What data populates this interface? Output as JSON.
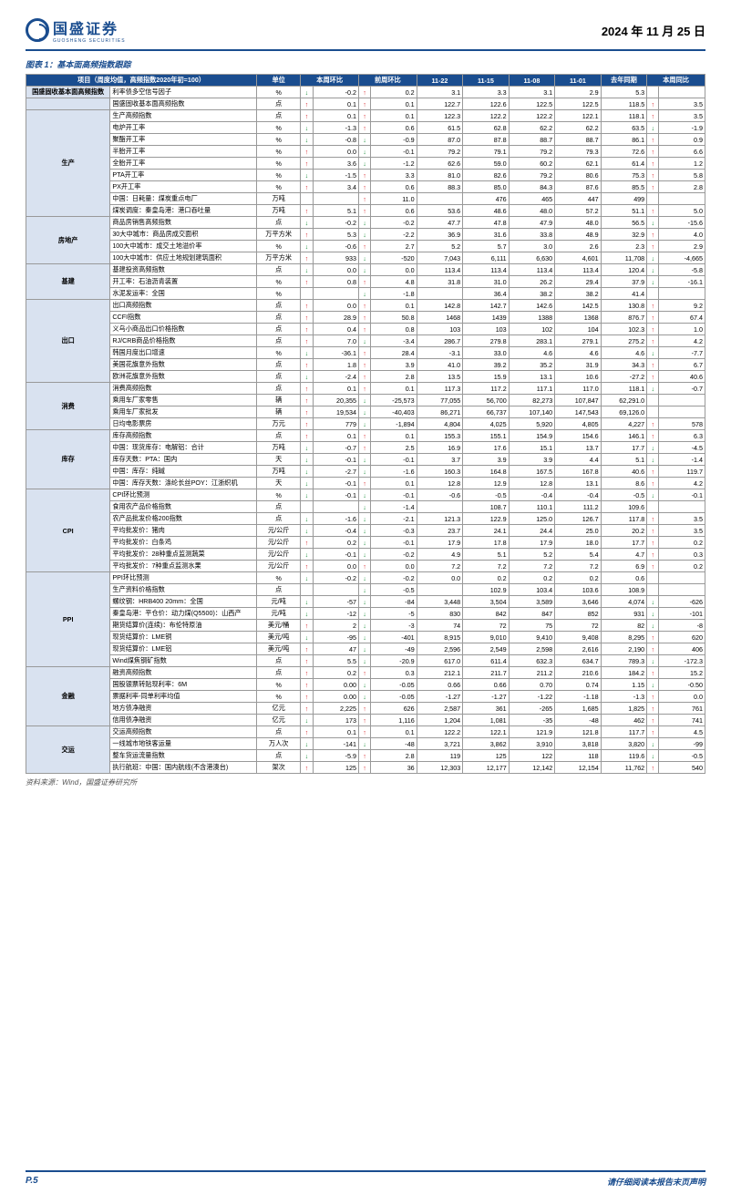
{
  "header": {
    "brand": "国盛证券",
    "brand_sub": "GUOSHENG SECURITIES",
    "date": "2024 年 11 月 25 日"
  },
  "figure_title": "图表 1：基本面高频指数跟踪",
  "source": "资料来源：Wind，国盛证券研究所",
  "footer": {
    "page": "P.5",
    "disclaimer": "请仔细阅读本报告末页声明"
  },
  "columns": [
    "项目（周度均值，高频指数2020年初=100）",
    "单位",
    "本周环比",
    "前周环比",
    "11-22",
    "11-15",
    "11-08",
    "11-01",
    "去年同期",
    "本周同比"
  ],
  "rows": [
    {
      "cat": "国盛固收基本面高频指数",
      "catspan": 1,
      "item": "利率债多空信号因子",
      "unit": "%",
      "wa": "dn",
      "wv": "-0.2",
      "pa": "up",
      "pv": "0.2",
      "v": [
        "3.1",
        "3.3",
        "3.1",
        "2.9",
        "5.3"
      ],
      "ya": "",
      "yv": ""
    },
    {
      "cat": "",
      "item": "国盛固收基本面高频指数",
      "unit": "点",
      "wa": "up",
      "wv": "0.1",
      "pa": "up",
      "pv": "0.1",
      "v": [
        "122.7",
        "122.6",
        "122.5",
        "122.5",
        "118.5"
      ],
      "ya": "up",
      "yv": "3.5"
    },
    {
      "cat": "生产",
      "catspan": 9,
      "item": "生产高频指数",
      "unit": "点",
      "wa": "up",
      "wv": "0.1",
      "pa": "up",
      "pv": "0.1",
      "v": [
        "122.3",
        "122.2",
        "122.2",
        "122.1",
        "118.1"
      ],
      "ya": "up",
      "yv": "3.5"
    },
    {
      "item": "电炉开工率",
      "unit": "%",
      "wa": "dn",
      "wv": "-1.3",
      "pa": "up",
      "pv": "0.6",
      "v": [
        "61.5",
        "62.8",
        "62.2",
        "62.2",
        "63.5"
      ],
      "ya": "dn",
      "yv": "-1.9"
    },
    {
      "item": "聚酯开工率",
      "unit": "%",
      "wa": "dn",
      "wv": "-0.8",
      "pa": "dn",
      "pv": "-0.9",
      "v": [
        "87.0",
        "87.8",
        "88.7",
        "88.7",
        "86.1"
      ],
      "ya": "up",
      "yv": "0.9"
    },
    {
      "item": "半胎开工率",
      "unit": "%",
      "wa": "up",
      "wv": "0.0",
      "pa": "dn",
      "pv": "-0.1",
      "v": [
        "79.2",
        "79.1",
        "79.2",
        "79.3",
        "72.6"
      ],
      "ya": "up",
      "yv": "6.6"
    },
    {
      "item": "全胎开工率",
      "unit": "%",
      "wa": "up",
      "wv": "3.6",
      "pa": "dn",
      "pv": "-1.2",
      "v": [
        "62.6",
        "59.0",
        "60.2",
        "62.1",
        "61.4"
      ],
      "ya": "up",
      "yv": "1.2"
    },
    {
      "item": "PTA开工率",
      "unit": "%",
      "wa": "dn",
      "wv": "-1.5",
      "pa": "up",
      "pv": "3.3",
      "v": [
        "81.0",
        "82.6",
        "79.2",
        "80.6",
        "75.3"
      ],
      "ya": "up",
      "yv": "5.8"
    },
    {
      "item": "PX开工率",
      "unit": "%",
      "wa": "up",
      "wv": "3.4",
      "pa": "up",
      "pv": "0.6",
      "v": [
        "88.3",
        "85.0",
        "84.3",
        "87.6",
        "85.5"
      ],
      "ya": "up",
      "yv": "2.8"
    },
    {
      "item": "中国：日耗量：煤炭重点电厂",
      "unit": "万吨",
      "wa": "",
      "wv": "",
      "pa": "up",
      "pv": "11.0",
      "v": [
        "",
        "476",
        "465",
        "447",
        "499"
      ],
      "ya": "",
      "yv": ""
    },
    {
      "item": "煤炭调度：秦皇岛港：港口吞吐量",
      "unit": "万吨",
      "wa": "up",
      "wv": "5.1",
      "pa": "up",
      "pv": "0.6",
      "v": [
        "53.6",
        "48.6",
        "48.0",
        "57.2",
        "51.1"
      ],
      "ya": "up",
      "yv": "5.0"
    },
    {
      "cat": "房地产",
      "catspan": 4,
      "item": "商品房销售高频指数",
      "unit": "点",
      "wa": "dn",
      "wv": "-0.2",
      "pa": "dn",
      "pv": "-0.2",
      "v": [
        "47.7",
        "47.8",
        "47.9",
        "48.0",
        "56.5"
      ],
      "ya": "dn",
      "yv": "-15.6"
    },
    {
      "item": "30大中城市：商品房成交面积",
      "unit": "万平方米",
      "wa": "up",
      "wv": "5.3",
      "pa": "dn",
      "pv": "-2.2",
      "v": [
        "36.9",
        "31.6",
        "33.8",
        "48.9",
        "32.9"
      ],
      "ya": "up",
      "yv": "4.0"
    },
    {
      "item": "100大中城市：成交土地溢价率",
      "unit": "%",
      "wa": "dn",
      "wv": "-0.6",
      "pa": "up",
      "pv": "2.7",
      "v": [
        "5.2",
        "5.7",
        "3.0",
        "2.6",
        "2.3"
      ],
      "ya": "up",
      "yv": "2.9"
    },
    {
      "item": "100大中城市：供应土地规划建筑面积",
      "unit": "万平方米",
      "wa": "up",
      "wv": "933",
      "pa": "dn",
      "pv": "-520",
      "v": [
        "7,043",
        "6,111",
        "6,630",
        "4,601",
        "11,708"
      ],
      "ya": "dn",
      "yv": "-4,665"
    },
    {
      "cat": "基建",
      "catspan": 3,
      "item": "基建投资高频指数",
      "unit": "点",
      "wa": "dn",
      "wv": "0.0",
      "pa": "dn",
      "pv": "0.0",
      "v": [
        "113.4",
        "113.4",
        "113.4",
        "113.4",
        "120.4"
      ],
      "ya": "dn",
      "yv": "-5.8"
    },
    {
      "item": "开工率：石油沥青装置",
      "unit": "%",
      "wa": "up",
      "wv": "0.8",
      "pa": "up",
      "pv": "4.8",
      "v": [
        "31.8",
        "31.0",
        "26.2",
        "29.4",
        "37.9"
      ],
      "ya": "dn",
      "yv": "-16.1"
    },
    {
      "item": "水泥发运率：全国",
      "unit": "%",
      "wa": "",
      "wv": "",
      "pa": "dn",
      "pv": "-1.8",
      "v": [
        "",
        "36.4",
        "38.2",
        "38.2",
        "41.4"
      ],
      "ya": "",
      "yv": ""
    },
    {
      "cat": "出口",
      "catspan": 7,
      "item": "出口高频指数",
      "unit": "点",
      "wa": "up",
      "wv": "0.0",
      "pa": "up",
      "pv": "0.1",
      "v": [
        "142.8",
        "142.7",
        "142.6",
        "142.5",
        "130.8"
      ],
      "ya": "up",
      "yv": "9.2"
    },
    {
      "item": "CCFI指数",
      "unit": "点",
      "wa": "up",
      "wv": "28.9",
      "pa": "up",
      "pv": "50.8",
      "v": [
        "1468",
        "1439",
        "1388",
        "1368",
        "876.7"
      ],
      "ya": "up",
      "yv": "67.4"
    },
    {
      "item": "义乌小商品出口价格指数",
      "unit": "点",
      "wa": "up",
      "wv": "0.4",
      "pa": "up",
      "pv": "0.8",
      "v": [
        "103",
        "103",
        "102",
        "104",
        "102.3"
      ],
      "ya": "up",
      "yv": "1.0"
    },
    {
      "item": "RJ/CRB商品价格指数",
      "unit": "点",
      "wa": "up",
      "wv": "7.0",
      "pa": "dn",
      "pv": "-3.4",
      "v": [
        "286.7",
        "279.8",
        "283.1",
        "279.1",
        "275.2"
      ],
      "ya": "up",
      "yv": "4.2"
    },
    {
      "item": "韩国月度出口增速",
      "unit": "%",
      "wa": "dn",
      "wv": "-36.1",
      "pa": "up",
      "pv": "28.4",
      "v": [
        "-3.1",
        "33.0",
        "4.6",
        "4.6",
        "4.6"
      ],
      "ya": "dn",
      "yv": "-7.7"
    },
    {
      "item": "美国花旗意外指数",
      "unit": "点",
      "wa": "up",
      "wv": "1.8",
      "pa": "up",
      "pv": "3.9",
      "v": [
        "41.0",
        "39.2",
        "35.2",
        "31.9",
        "34.3"
      ],
      "ya": "up",
      "yv": "6.7"
    },
    {
      "item": "欧洲花旗意外指数",
      "unit": "点",
      "wa": "dn",
      "wv": "-2.4",
      "pa": "up",
      "pv": "2.8",
      "v": [
        "13.5",
        "15.9",
        "13.1",
        "10.6",
        "-27.2"
      ],
      "ya": "up",
      "yv": "40.6"
    },
    {
      "cat": "消费",
      "catspan": 4,
      "item": "消费高频指数",
      "unit": "点",
      "wa": "up",
      "wv": "0.1",
      "pa": "up",
      "pv": "0.1",
      "v": [
        "117.3",
        "117.2",
        "117.1",
        "117.0",
        "118.1"
      ],
      "ya": "dn",
      "yv": "-0.7"
    },
    {
      "item": "乘用车厂家零售",
      "unit": "辆",
      "wa": "up",
      "wv": "20,355",
      "pa": "dn",
      "pv": "-25,573",
      "v": [
        "77,055",
        "56,700",
        "82,273",
        "107,847",
        "62,291.0"
      ],
      "ya": "",
      "yv": ""
    },
    {
      "item": "乘用车厂家批发",
      "unit": "辆",
      "wa": "up",
      "wv": "19,534",
      "pa": "dn",
      "pv": "-40,403",
      "v": [
        "86,271",
        "66,737",
        "107,140",
        "147,543",
        "69,126.0"
      ],
      "ya": "",
      "yv": ""
    },
    {
      "item": "日均电影票房",
      "unit": "万元",
      "wa": "up",
      "wv": "779",
      "pa": "dn",
      "pv": "-1,894",
      "v": [
        "4,804",
        "4,025",
        "5,920",
        "4,805",
        "4,227"
      ],
      "ya": "up",
      "yv": "578"
    },
    {
      "cat": "库存",
      "catspan": 5,
      "item": "库存高频指数",
      "unit": "点",
      "wa": "up",
      "wv": "0.1",
      "pa": "up",
      "pv": "0.1",
      "v": [
        "155.3",
        "155.1",
        "154.9",
        "154.6",
        "146.1"
      ],
      "ya": "up",
      "yv": "6.3"
    },
    {
      "item": "中国：现货库存：电解铝：合计",
      "unit": "万吨",
      "wa": "dn",
      "wv": "-0.7",
      "pa": "up",
      "pv": "2.5",
      "v": [
        "16.9",
        "17.6",
        "15.1",
        "13.7",
        "17.7"
      ],
      "ya": "dn",
      "yv": "-4.5"
    },
    {
      "item": "库存天数：PTA：国内",
      "unit": "天",
      "wa": "dn",
      "wv": "-0.1",
      "pa": "dn",
      "pv": "-0.1",
      "v": [
        "3.7",
        "3.9",
        "3.9",
        "4.4",
        "5.1"
      ],
      "ya": "dn",
      "yv": "-1.4"
    },
    {
      "item": "中国：库存：纯碱",
      "unit": "万吨",
      "wa": "dn",
      "wv": "-2.7",
      "pa": "dn",
      "pv": "-1.6",
      "v": [
        "160.3",
        "164.8",
        "167.5",
        "167.8",
        "40.6"
      ],
      "ya": "up",
      "yv": "119.7"
    },
    {
      "item": "中国：库存天数：涤纶长丝POY：江浙织机",
      "unit": "天",
      "wa": "dn",
      "wv": "-0.1",
      "pa": "up",
      "pv": "0.1",
      "v": [
        "12.8",
        "12.9",
        "12.8",
        "13.1",
        "8.6"
      ],
      "ya": "up",
      "yv": "4.2"
    },
    {
      "cat": "CPI",
      "catspan": 7,
      "item": "CPI环比预测",
      "unit": "%",
      "wa": "dn",
      "wv": "-0.1",
      "pa": "dn",
      "pv": "-0.1",
      "v": [
        "-0.6",
        "-0.5",
        "-0.4",
        "-0.4",
        "-0.5"
      ],
      "ya": "dn",
      "yv": "-0.1"
    },
    {
      "item": "食用农产品价格指数",
      "unit": "点",
      "wa": "",
      "wv": "",
      "pa": "dn",
      "pv": "-1.4",
      "v": [
        "",
        "108.7",
        "110.1",
        "111.2",
        "109.6"
      ],
      "ya": "",
      "yv": ""
    },
    {
      "item": "农产品批发价格200指数",
      "unit": "点",
      "wa": "dn",
      "wv": "-1.6",
      "pa": "dn",
      "pv": "-2.1",
      "v": [
        "121.3",
        "122.9",
        "125.0",
        "126.7",
        "117.8"
      ],
      "ya": "up",
      "yv": "3.5"
    },
    {
      "item": "平均批发价：猪肉",
      "unit": "元/公斤",
      "wa": "dn",
      "wv": "-0.4",
      "pa": "dn",
      "pv": "-0.3",
      "v": [
        "23.7",
        "24.1",
        "24.4",
        "25.0",
        "20.2"
      ],
      "ya": "up",
      "yv": "3.5"
    },
    {
      "item": "平均批发价：白条鸡",
      "unit": "元/公斤",
      "wa": "up",
      "wv": "0.2",
      "pa": "dn",
      "pv": "-0.1",
      "v": [
        "17.9",
        "17.8",
        "17.9",
        "18.0",
        "17.7"
      ],
      "ya": "up",
      "yv": "0.2"
    },
    {
      "item": "平均批发价：28种重点监测蔬菜",
      "unit": "元/公斤",
      "wa": "dn",
      "wv": "-0.1",
      "pa": "dn",
      "pv": "-0.2",
      "v": [
        "4.9",
        "5.1",
        "5.2",
        "5.4",
        "4.7"
      ],
      "ya": "up",
      "yv": "0.3"
    },
    {
      "item": "平均批发价：7种重点监测水果",
      "unit": "元/公斤",
      "wa": "up",
      "wv": "0.0",
      "pa": "up",
      "pv": "0.0",
      "v": [
        "7.2",
        "7.2",
        "7.2",
        "7.2",
        "6.9"
      ],
      "ya": "up",
      "yv": "0.2"
    },
    {
      "cat": "PPI",
      "catspan": 7,
      "item": "PPI环比预测",
      "unit": "%",
      "wa": "dn",
      "wv": "-0.2",
      "pa": "dn",
      "pv": "-0.2",
      "v": [
        "0.0",
        "0.2",
        "0.2",
        "0.2",
        "0.6"
      ],
      "ya": "",
      "yv": ""
    },
    {
      "item": "生产资料价格指数",
      "unit": "点",
      "wa": "",
      "wv": "",
      "pa": "dn",
      "pv": "-0.5",
      "v": [
        "",
        "102.9",
        "103.4",
        "103.6",
        "108.9"
      ],
      "ya": "",
      "yv": ""
    },
    {
      "item": "螺纹钢：HRB400 20mm：全国",
      "unit": "元/吨",
      "wa": "dn",
      "wv": "-57",
      "pa": "dn",
      "pv": "-84",
      "v": [
        "3,448",
        "3,504",
        "3,589",
        "3,646",
        "4,074"
      ],
      "ya": "dn",
      "yv": "-626"
    },
    {
      "item": "秦皇岛港：平仓价：动力煤(Q5500)：山西产",
      "unit": "元/吨",
      "wa": "dn",
      "wv": "-12",
      "pa": "dn",
      "pv": "-5",
      "v": [
        "830",
        "842",
        "847",
        "852",
        "931"
      ],
      "ya": "dn",
      "yv": "-101"
    },
    {
      "item": "期货结算价(连续)：布伦特原油",
      "unit": "美元/桶",
      "wa": "up",
      "wv": "2",
      "pa": "dn",
      "pv": "-3",
      "v": [
        "74",
        "72",
        "75",
        "72",
        "82"
      ],
      "ya": "dn",
      "yv": "-8"
    },
    {
      "item": "现货结算价：LME铜",
      "unit": "美元/吨",
      "wa": "dn",
      "wv": "-95",
      "pa": "dn",
      "pv": "-401",
      "v": [
        "8,915",
        "9,010",
        "9,410",
        "9,408",
        "8,295"
      ],
      "ya": "up",
      "yv": "620"
    },
    {
      "item": "现货结算价：LME铝",
      "unit": "美元/吨",
      "wa": "up",
      "wv": "47",
      "pa": "dn",
      "pv": "-49",
      "v": [
        "2,596",
        "2,549",
        "2,598",
        "2,616",
        "2,190"
      ],
      "ya": "up",
      "yv": "406"
    },
    {
      "item": "Wind煤焦钢矿指数",
      "unit": "点",
      "wa": "up",
      "wv": "5.5",
      "pa": "dn",
      "pv": "-20.9",
      "v": [
        "617.0",
        "611.4",
        "632.3",
        "634.7",
        "789.3"
      ],
      "ya": "dn",
      "yv": "-172.3"
    },
    {
      "cat": "金融",
      "catspan": 5,
      "item": "融资高频指数",
      "unit": "点",
      "wa": "up",
      "wv": "0.2",
      "pa": "up",
      "pv": "0.3",
      "v": [
        "212.1",
        "211.7",
        "211.2",
        "210.6",
        "184.2"
      ],
      "ya": "up",
      "yv": "15.2"
    },
    {
      "item": "国股银票转贴现利率：6M",
      "unit": "%",
      "wa": "up",
      "wv": "0.00",
      "pa": "dn",
      "pv": "-0.05",
      "v": [
        "0.66",
        "0.66",
        "0.70",
        "0.74",
        "1.15"
      ],
      "ya": "dn",
      "yv": "-0.50"
    },
    {
      "item": "票据利率-同单利率均值",
      "unit": "%",
      "wa": "up",
      "wv": "0.00",
      "pa": "dn",
      "pv": "-0.05",
      "v": [
        "-1.27",
        "-1.27",
        "-1.22",
        "-1.18",
        "-1.3"
      ],
      "ya": "up",
      "yv": "0.0"
    },
    {
      "item": "地方债净融资",
      "unit": "亿元",
      "wa": "up",
      "wv": "2,225",
      "pa": "up",
      "pv": "626",
      "v": [
        "2,587",
        "361",
        "-265",
        "1,685",
        "1,825"
      ],
      "ya": "up",
      "yv": "761"
    },
    {
      "item": "信用债净融资",
      "unit": "亿元",
      "wa": "dn",
      "wv": "173",
      "pa": "up",
      "pv": "1,116",
      "v": [
        "1,204",
        "1,081",
        "-35",
        "-48",
        "462"
      ],
      "ya": "up",
      "yv": "741"
    },
    {
      "cat": "交运",
      "catspan": 4,
      "item": "交运高频指数",
      "unit": "点",
      "wa": "up",
      "wv": "0.1",
      "pa": "up",
      "pv": "0.1",
      "v": [
        "122.2",
        "122.1",
        "121.9",
        "121.8",
        "117.7"
      ],
      "ya": "up",
      "yv": "4.5"
    },
    {
      "item": "一线城市地铁客运量",
      "unit": "万人次",
      "wa": "dn",
      "wv": "-141",
      "pa": "dn",
      "pv": "-48",
      "v": [
        "3,721",
        "3,862",
        "3,910",
        "3,818",
        "3,820"
      ],
      "ya": "dn",
      "yv": "-99"
    },
    {
      "item": "整车货运流量指数",
      "unit": "点",
      "wa": "dn",
      "wv": "-5.9",
      "pa": "up",
      "pv": "2.8",
      "v": [
        "119",
        "125",
        "122",
        "118",
        "119.6"
      ],
      "ya": "dn",
      "yv": "-0.5"
    },
    {
      "item": "执行航班：中国：国内航线(不含港澳台)",
      "unit": "架次",
      "wa": "up",
      "wv": "125",
      "pa": "up",
      "pv": "36",
      "v": [
        "12,303",
        "12,177",
        "12,142",
        "12,154",
        "11,762"
      ],
      "ya": "up",
      "yv": "540"
    }
  ]
}
